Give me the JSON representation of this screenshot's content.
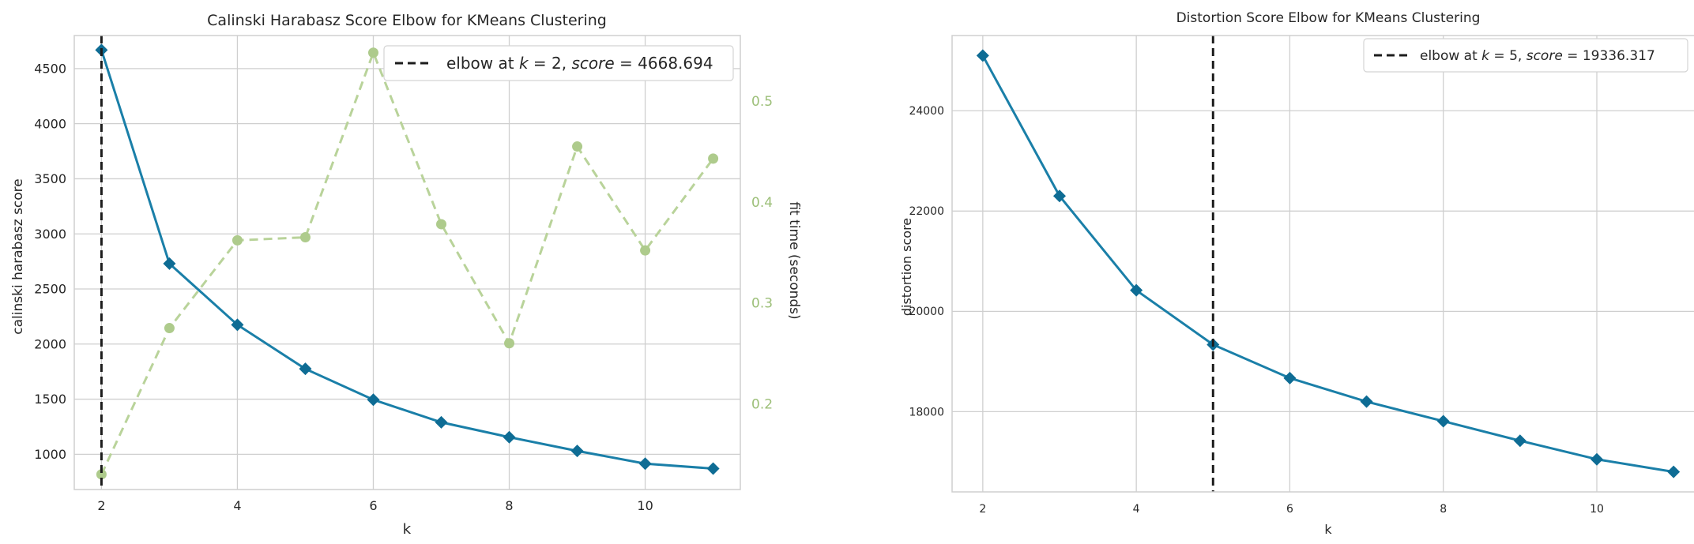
{
  "colors": {
    "score_line": "#1a7fa8",
    "score_marker": "#0e6c94",
    "time_line": "#b9d39a",
    "time_marker": "#aecb8c",
    "time_tick": "#9cbf78",
    "elbow_line": "#1c1c1c",
    "grid": "#cfcfcf",
    "frame": "#cfcfcf"
  },
  "chart_data": [
    {
      "type": "line",
      "title": "Calinski Harabasz Score Elbow for KMeans Clustering",
      "xlabel": "k",
      "ylabel": "calinski harabasz score",
      "y2label": "fit time (seconds)",
      "x": [
        2,
        3,
        4,
        5,
        6,
        7,
        8,
        9,
        10,
        11
      ],
      "xlim": [
        1.6,
        11.4
      ],
      "ylim": [
        680,
        4800
      ],
      "y2lim": [
        0.115,
        0.565
      ],
      "xticks": [
        2,
        4,
        6,
        8,
        10
      ],
      "yticks": [
        1000,
        1500,
        2000,
        2500,
        3000,
        3500,
        4000,
        4500
      ],
      "y2ticks": [
        "0.2",
        "0.3",
        "0.4",
        "0.5"
      ],
      "series": [
        {
          "axis": "left",
          "values": [
            4668.694,
            2730,
            2175,
            1775,
            1495,
            1290,
            1155,
            1030,
            915,
            870
          ]
        },
        {
          "axis": "right",
          "values": [
            0.13,
            0.275,
            0.362,
            0.365,
            0.548,
            0.378,
            0.26,
            0.455,
            0.352,
            0.443
          ]
        }
      ],
      "elbow": {
        "k": 2,
        "label_prefix": "elbow at ",
        "k_sym": "k",
        "eq1": " = 2, ",
        "score_sym": "score",
        "eq2": " = 4668.694"
      },
      "grid": true,
      "legend": "top-right"
    },
    {
      "type": "line",
      "title": "Distortion Score Elbow for KMeans Clustering",
      "xlabel": "k",
      "ylabel": "distortion score",
      "x": [
        2,
        3,
        4,
        5,
        6,
        7,
        8,
        9,
        10,
        11
      ],
      "xlim": [
        1.6,
        11.4
      ],
      "ylim": [
        16400,
        25500
      ],
      "xticks": [
        2,
        4,
        6,
        8,
        10
      ],
      "yticks": [
        18000,
        20000,
        22000,
        24000
      ],
      "series": [
        {
          "axis": "left",
          "values": [
            25100,
            22300,
            20420,
            19336.317,
            18670,
            18200,
            17810,
            17420,
            17050,
            16800
          ]
        }
      ],
      "elbow": {
        "k": 5,
        "label_prefix": "elbow at ",
        "k_sym": "k",
        "eq1": " = 5, ",
        "score_sym": "score",
        "eq2": " = 19336.317"
      },
      "grid": true,
      "legend": "top-right"
    }
  ]
}
